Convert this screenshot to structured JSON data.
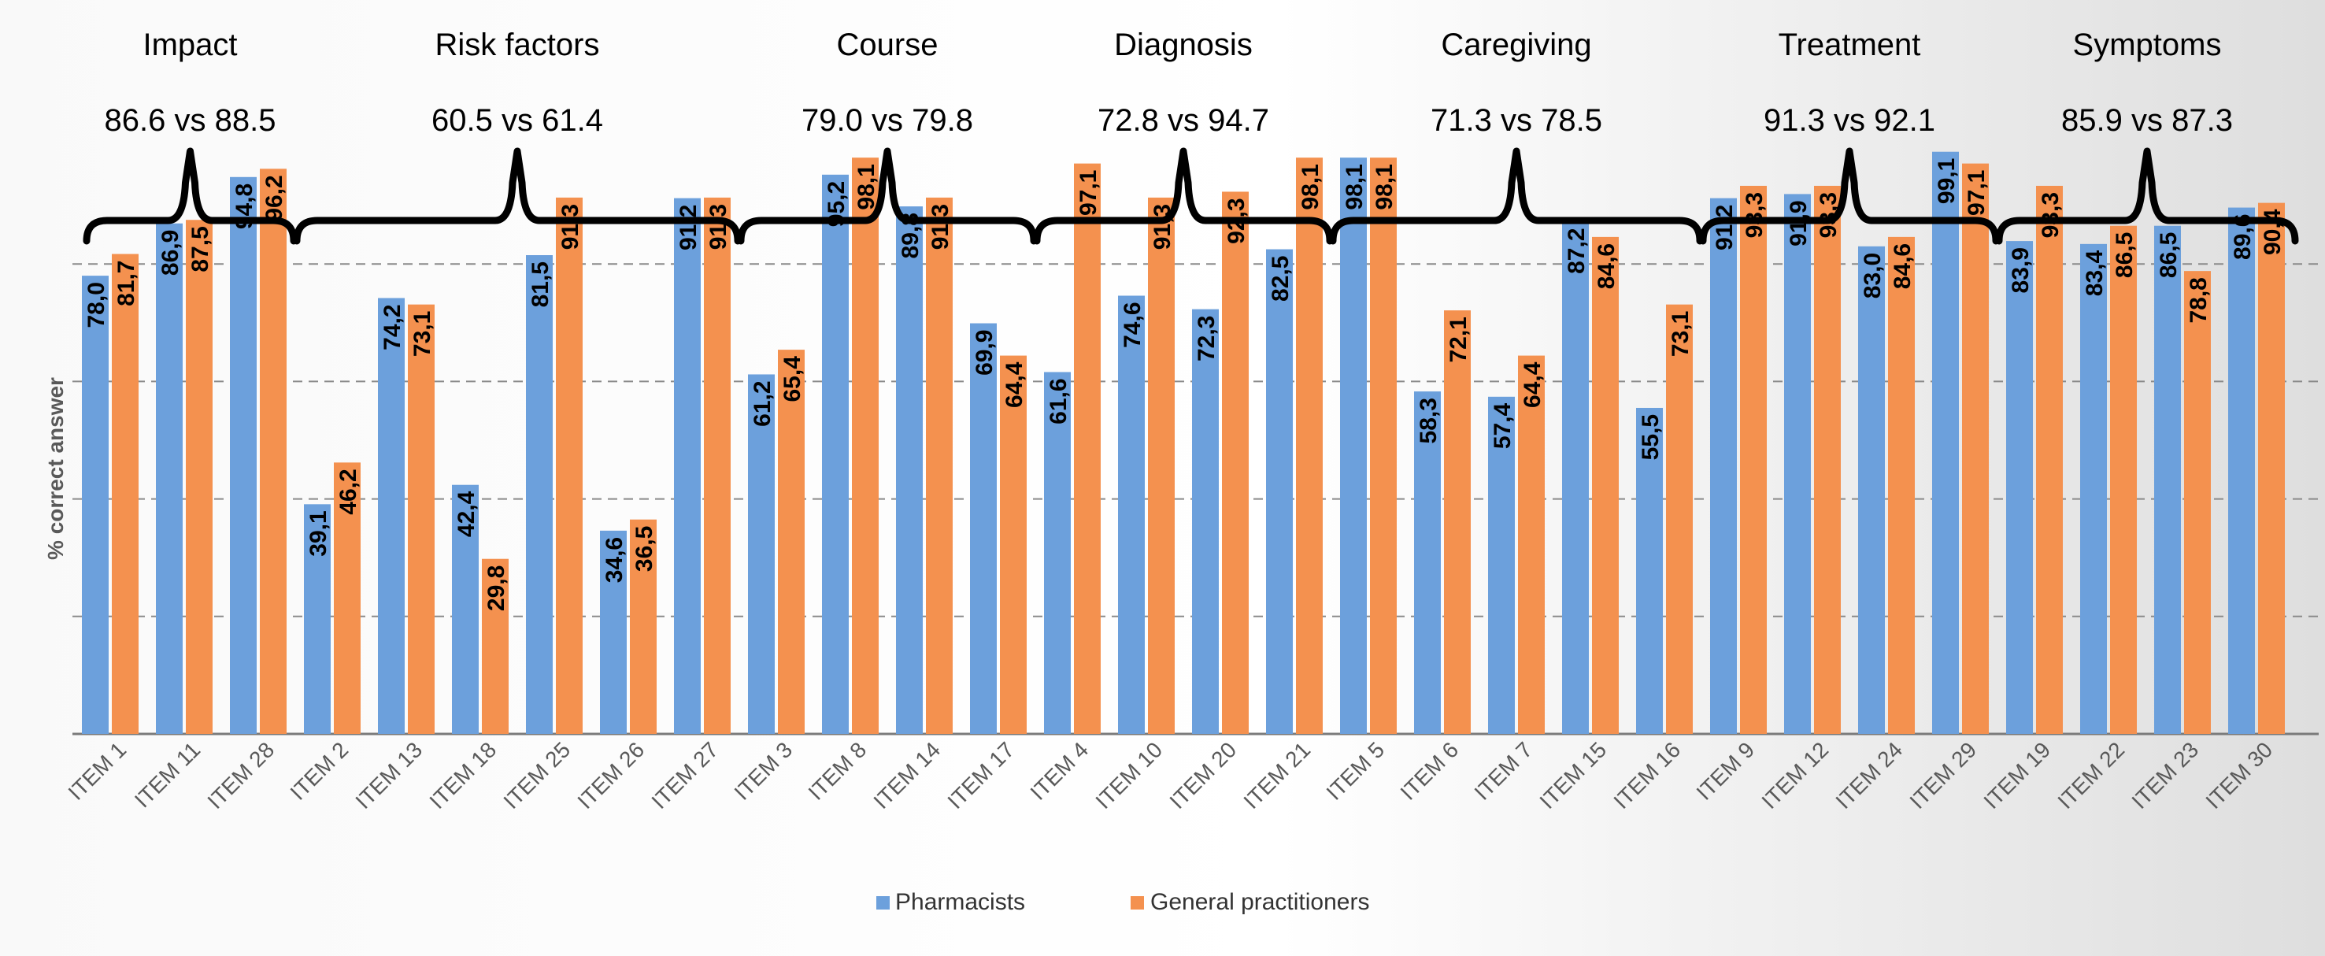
{
  "chart_data": {
    "type": "bar",
    "title": "",
    "xlabel": "",
    "ylabel": "% correct answer",
    "ylim": [
      0,
      100
    ],
    "grid": true,
    "legend_position": "bottom-center",
    "series": [
      {
        "name": "Pharmacists",
        "color": "#6ca0dc",
        "values": [
          78.0,
          86.9,
          94.8,
          39.1,
          74.2,
          42.4,
          81.5,
          34.6,
          91.2,
          61.2,
          95.2,
          89.8,
          69.9,
          61.6,
          74.6,
          72.3,
          82.5,
          98.1,
          58.3,
          57.4,
          87.2,
          55.5,
          91.2,
          91.9,
          83.0,
          99.1,
          83.9,
          83.4,
          86.5,
          89.6
        ],
        "labels": [
          "78,0",
          "86,9",
          "94,8",
          "39,1",
          "74,2",
          "42,4",
          "81,5",
          "34,6",
          "91,2",
          "61,2",
          "95,2",
          "89,8",
          "69,9",
          "61,6",
          "74,6",
          "72,3",
          "82,5",
          "98,1",
          "58,3",
          "57,4",
          "87,2",
          "55,5",
          "91,2",
          "91,9",
          "83,0",
          "99,1",
          "83,9",
          "83,4",
          "86,5",
          "89,6"
        ]
      },
      {
        "name": "General practitioners",
        "color": "#f4914f",
        "values": [
          81.7,
          87.5,
          96.2,
          46.2,
          73.1,
          29.8,
          91.3,
          36.5,
          91.3,
          65.4,
          98.1,
          91.3,
          64.4,
          97.1,
          91.3,
          92.3,
          98.1,
          98.1,
          72.1,
          64.4,
          84.6,
          73.1,
          93.3,
          93.3,
          84.6,
          97.1,
          93.3,
          86.5,
          78.8,
          90.4
        ],
        "labels": [
          "81,7",
          "87,5",
          "96,2",
          "46,2",
          "73,1",
          "29,8",
          "91,3",
          "36,5",
          "91,3",
          "65,4",
          "98,1",
          "91,3",
          "64,4",
          "97,1",
          "91,3",
          "92,3",
          "98,1",
          "98,1",
          "72,1",
          "64,4",
          "84,6",
          "73,1",
          "93,3",
          "93,3",
          "84,6",
          "97,1",
          "93,3",
          "86,5",
          "78,8",
          "90,4"
        ]
      }
    ],
    "categories": [
      "ITEM 1",
      "ITEM 11",
      "ITEM 28",
      "ITEM 2",
      "ITEM 13",
      "ITEM 18",
      "ITEM 25",
      "ITEM 26",
      "ITEM 27",
      "ITEM 3",
      "ITEM 8",
      "ITEM 14",
      "ITEM 17",
      "ITEM 4",
      "ITEM 10",
      "ITEM 20",
      "ITEM 21",
      "ITEM 5",
      "ITEM 6",
      "ITEM 7",
      "ITEM 15",
      "ITEM 16",
      "ITEM 9",
      "ITEM 12",
      "ITEM 24",
      "ITEM 29",
      "ITEM 19",
      "ITEM 22",
      "ITEM 23",
      "ITEM 30"
    ],
    "groups": [
      {
        "name": "Impact",
        "score": "86.6 vs 88.5",
        "first": 0,
        "last": 2
      },
      {
        "name": "Risk factors",
        "score": "60.5 vs 61.4",
        "first": 3,
        "last": 8
      },
      {
        "name": "Course",
        "score": "79.0 vs 79.8",
        "first": 9,
        "last": 12
      },
      {
        "name": "Diagnosis",
        "score": "72.8 vs 94.7",
        "first": 13,
        "last": 16
      },
      {
        "name": "Caregiving",
        "score": "71.3 vs 78.5",
        "first": 17,
        "last": 21
      },
      {
        "name": "Treatment",
        "score": "91.3 vs 92.1",
        "first": 22,
        "last": 25
      },
      {
        "name": "Symptoms",
        "score": "85.9 vs 87.3",
        "first": 26,
        "last": 29
      }
    ]
  }
}
